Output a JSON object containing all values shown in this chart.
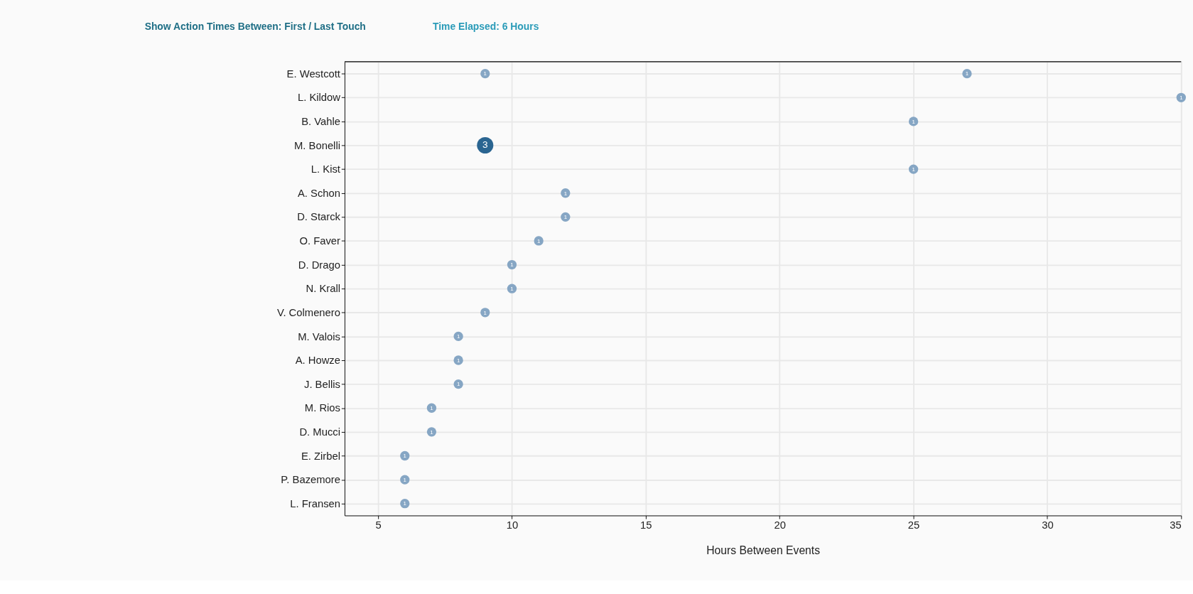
{
  "chart_data": {
    "type": "bubble",
    "categories": [
      "E. Westcott",
      "L. Kildow",
      "B. Vahle",
      "M. Bonelli",
      "L. Kist",
      "A. Schon",
      "D. Starck",
      "O. Faver",
      "D. Drago",
      "N. Krall",
      "V. Colmenero",
      "M. Valois",
      "A. Howze",
      "J. Bellis",
      "M. Rios",
      "D. Mucci",
      "E. Zirbel",
      "P. Bazemore",
      "L. Fransen"
    ],
    "series": [
      {
        "color": "#86a6c4",
        "values": [
          9,
          35,
          25,
          9,
          25,
          12,
          12,
          11,
          10,
          10,
          9,
          8,
          8,
          8,
          7,
          7,
          6,
          6,
          6
        ],
        "sizes": [
          1,
          1,
          1,
          3,
          1,
          1,
          1,
          1,
          1,
          1,
          1,
          1,
          1,
          1,
          1,
          1,
          1,
          1,
          1
        ],
        "value_labels": [
          "1",
          "1",
          "1",
          "3",
          "1",
          "1",
          "1",
          "1",
          "1",
          "1",
          "1",
          "1",
          "1",
          "1",
          "1",
          "1",
          "1",
          "1",
          "1"
        ],
        "colors": [
          null,
          null,
          null,
          "#2a6591",
          null,
          null,
          null,
          null,
          null,
          null,
          null,
          null,
          null,
          null,
          null,
          null,
          null,
          null,
          null
        ]
      },
      {
        "color": "#86a6c4",
        "values": [
          27,
          null,
          null,
          null,
          null,
          null,
          null,
          null,
          null,
          null,
          null,
          null,
          null,
          null,
          null,
          null,
          null,
          null,
          null
        ],
        "sizes": [
          1,
          null,
          null,
          null,
          null,
          null,
          null,
          null,
          null,
          null,
          null,
          null,
          null,
          null,
          null,
          null,
          null,
          null,
          null
        ],
        "value_labels": [
          "1",
          null,
          null,
          null,
          null,
          null,
          null,
          null,
          null,
          null,
          null,
          null,
          null,
          null,
          null,
          null,
          null,
          null,
          null
        ]
      }
    ],
    "orientation": "horizontal",
    "xlabel": "Hours Between Events",
    "xlim": [
      3.75,
      35
    ],
    "xticks": [
      5,
      10,
      15,
      20,
      25,
      30,
      35
    ],
    "grid": true,
    "annotations": [
      "Show Action Times Between: First / Last Touch",
      "Time Elapsed: 6 Hours"
    ]
  }
}
